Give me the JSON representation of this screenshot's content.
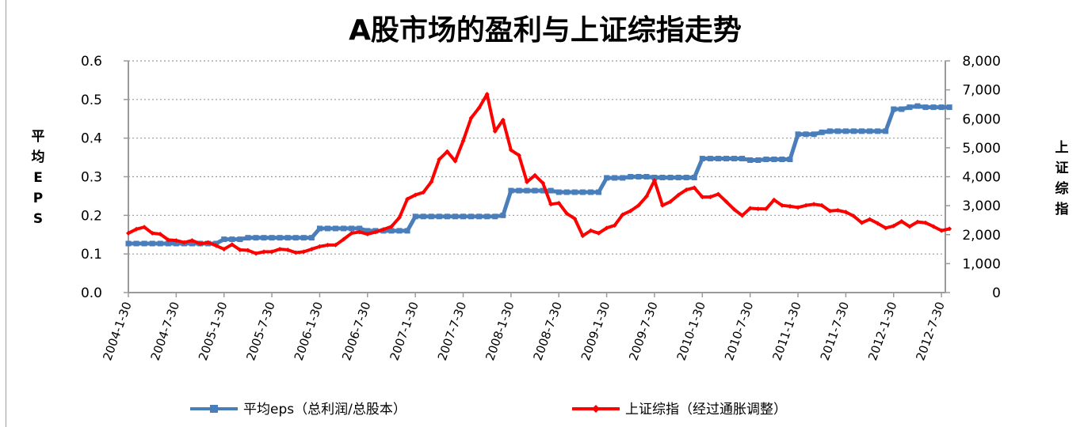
{
  "chart_data": {
    "type": "line",
    "title": "A股市场的盈利与上证综指走势",
    "ylabel_left": "平均EPS",
    "ylabel_right": "上证综指",
    "ylim_left": [
      0,
      0.6
    ],
    "ylim_right": [
      0,
      8000
    ],
    "y_ticks_left": [
      "0.0",
      "0.1",
      "0.2",
      "0.3",
      "0.4",
      "0.5",
      "0.6"
    ],
    "y_ticks_right": [
      "0",
      "1,000",
      "2,000",
      "3,000",
      "4,000",
      "5,000",
      "6,000",
      "7,000",
      "8,000"
    ],
    "x_tick_labels": [
      "2004-1-30",
      "2004-7-30",
      "2005-1-30",
      "2005-7-30",
      "2006-1-30",
      "2006-7-30",
      "2007-1-30",
      "2007-7-30",
      "2008-1-30",
      "2008-7-30",
      "2009-1-30",
      "2009-7-30",
      "2010-1-30",
      "2010-7-30",
      "2011-1-30",
      "2011-7-30",
      "2012-1-30",
      "2012-7-30"
    ],
    "grid": "horizontal dotted",
    "legend_position": "bottom",
    "categories": [
      "2004-01",
      "2004-02",
      "2004-03",
      "2004-04",
      "2004-05",
      "2004-06",
      "2004-07",
      "2004-08",
      "2004-09",
      "2004-10",
      "2004-11",
      "2004-12",
      "2005-01",
      "2005-02",
      "2005-03",
      "2005-04",
      "2005-05",
      "2005-06",
      "2005-07",
      "2005-08",
      "2005-09",
      "2005-10",
      "2005-11",
      "2005-12",
      "2006-01",
      "2006-02",
      "2006-03",
      "2006-04",
      "2006-05",
      "2006-06",
      "2006-07",
      "2006-08",
      "2006-09",
      "2006-10",
      "2006-11",
      "2006-12",
      "2007-01",
      "2007-02",
      "2007-03",
      "2007-04",
      "2007-05",
      "2007-06",
      "2007-07",
      "2007-08",
      "2007-09",
      "2007-10",
      "2007-11",
      "2007-12",
      "2008-01",
      "2008-02",
      "2008-03",
      "2008-04",
      "2008-05",
      "2008-06",
      "2008-07",
      "2008-08",
      "2008-09",
      "2008-10",
      "2008-11",
      "2008-12",
      "2009-01",
      "2009-02",
      "2009-03",
      "2009-04",
      "2009-05",
      "2009-06",
      "2009-07",
      "2009-08",
      "2009-09",
      "2009-10",
      "2009-11",
      "2009-12",
      "2010-01",
      "2010-02",
      "2010-03",
      "2010-04",
      "2010-05",
      "2010-06",
      "2010-07",
      "2010-08",
      "2010-09",
      "2010-10",
      "2010-11",
      "2010-12",
      "2011-01",
      "2011-02",
      "2011-03",
      "2011-04",
      "2011-05",
      "2011-06",
      "2011-07",
      "2011-08",
      "2011-09",
      "2011-10",
      "2011-11",
      "2011-12",
      "2012-01",
      "2012-02",
      "2012-03",
      "2012-04",
      "2012-05",
      "2012-06",
      "2012-07",
      "2012-08"
    ],
    "series": [
      {
        "name": "平均eps（总利润/总股本）",
        "axis": "left",
        "color": "#4a7ebb",
        "marker": "square",
        "values": [
          0.127,
          0.127,
          0.127,
          0.127,
          0.127,
          0.127,
          0.127,
          0.127,
          0.127,
          0.127,
          0.127,
          0.127,
          0.138,
          0.138,
          0.138,
          0.142,
          0.142,
          0.142,
          0.142,
          0.142,
          0.142,
          0.142,
          0.142,
          0.142,
          0.166,
          0.166,
          0.166,
          0.166,
          0.166,
          0.166,
          0.16,
          0.16,
          0.16,
          0.16,
          0.16,
          0.16,
          0.197,
          0.197,
          0.197,
          0.197,
          0.197,
          0.197,
          0.197,
          0.197,
          0.197,
          0.197,
          0.197,
          0.2,
          0.264,
          0.264,
          0.264,
          0.264,
          0.264,
          0.264,
          0.26,
          0.26,
          0.26,
          0.26,
          0.26,
          0.26,
          0.297,
          0.297,
          0.297,
          0.3,
          0.3,
          0.3,
          0.298,
          0.298,
          0.298,
          0.298,
          0.298,
          0.298,
          0.347,
          0.347,
          0.347,
          0.347,
          0.347,
          0.347,
          0.343,
          0.343,
          0.345,
          0.345,
          0.345,
          0.345,
          0.41,
          0.41,
          0.41,
          0.415,
          0.418,
          0.418,
          0.418,
          0.418,
          0.418,
          0.418,
          0.418,
          0.418,
          0.475,
          0.475,
          0.48,
          0.483,
          0.48,
          0.48,
          0.48,
          0.48
        ]
      },
      {
        "name": "上证综指（经过通胀调整）",
        "axis": "right",
        "color": "#ff0000",
        "marker": "diamond",
        "values": [
          2050,
          2190,
          2260,
          2050,
          2020,
          1820,
          1800,
          1730,
          1800,
          1685,
          1730,
          1620,
          1500,
          1660,
          1475,
          1460,
          1350,
          1410,
          1410,
          1500,
          1475,
          1380,
          1410,
          1500,
          1590,
          1640,
          1640,
          1840,
          2050,
          2090,
          2020,
          2090,
          2180,
          2280,
          2590,
          3230,
          3370,
          3460,
          3820,
          4600,
          4870,
          4540,
          5240,
          6030,
          6380,
          6850,
          5570,
          5960,
          4920,
          4740,
          3820,
          4050,
          3780,
          3050,
          3090,
          2730,
          2550,
          1960,
          2140,
          2050,
          2230,
          2320,
          2690,
          2820,
          3010,
          3320,
          3870,
          3010,
          3140,
          3370,
          3550,
          3620,
          3300,
          3300,
          3400,
          3140,
          2870,
          2660,
          2910,
          2890,
          2890,
          3200,
          3010,
          2980,
          2940,
          3010,
          3050,
          3010,
          2820,
          2840,
          2780,
          2640,
          2410,
          2530,
          2390,
          2230,
          2300,
          2460,
          2280,
          2440,
          2410,
          2280,
          2140,
          2200
        ]
      }
    ]
  }
}
